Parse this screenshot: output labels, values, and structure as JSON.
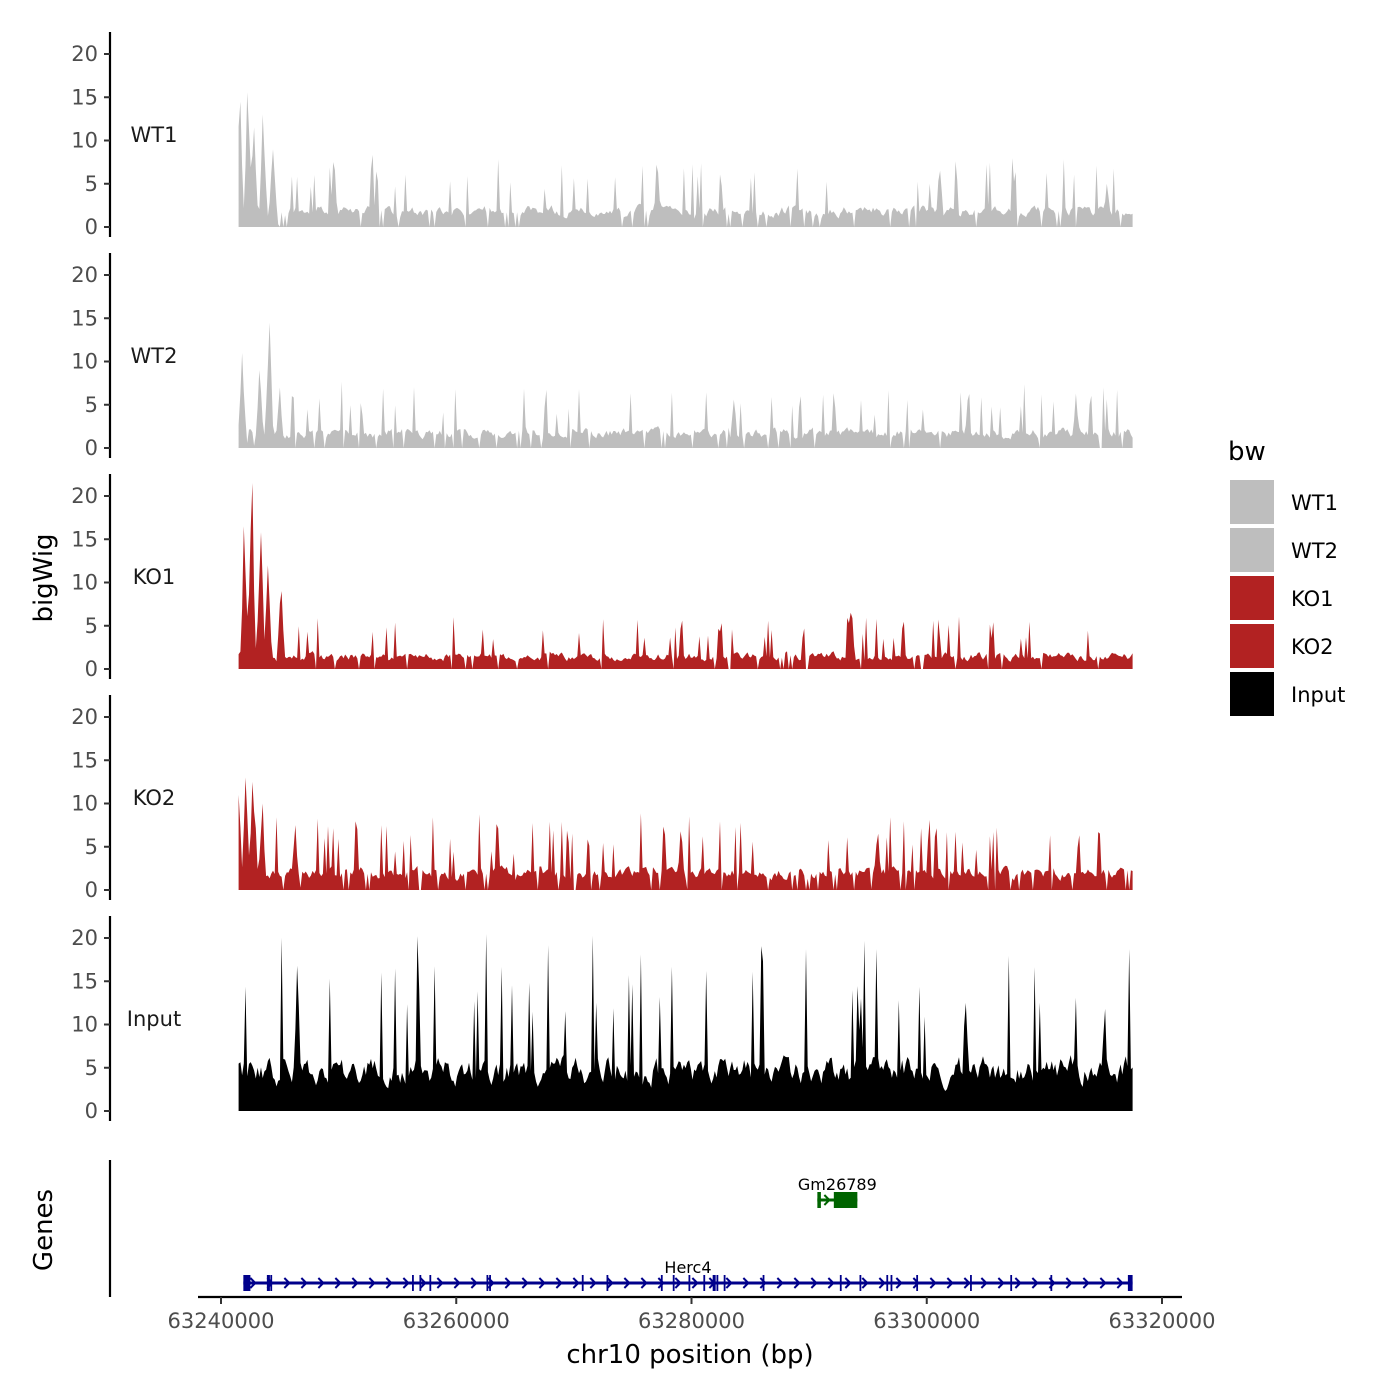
{
  "chart_data": {
    "type": "area",
    "y_axis_title": "bigWig",
    "genes_axis_title": "Genes",
    "x_axis_title": "chr10 position (bp)",
    "x_ticks": [
      63240000,
      63260000,
      63280000,
      63300000,
      63320000
    ],
    "x_tick_labels": [
      "63240000",
      "63260000",
      "63280000",
      "63300000",
      "63320000"
    ],
    "xlim": [
      63240000,
      63320000
    ],
    "data_xrange": [
      63241500,
      63317500
    ],
    "y_ticks": [
      0,
      5,
      10,
      15,
      20
    ],
    "y_tick_labels": [
      "0",
      "5",
      "10",
      "15",
      "20"
    ],
    "ylim": [
      0,
      23
    ],
    "tracks": [
      {
        "name": "WT1",
        "color": "#bebebe",
        "peaks": [
          [
            63242300,
            15.6
          ],
          [
            63241600,
            14.5
          ],
          [
            63243600,
            13
          ],
          [
            63242800,
            11.5
          ],
          [
            63244400,
            9
          ],
          [
            63249600,
            7.5
          ],
          [
            63277100,
            6.3
          ],
          [
            63301100,
            6.5
          ],
          [
            63315300,
            5
          ]
        ],
        "background": 2.2,
        "seed": 11
      },
      {
        "name": "WT2",
        "color": "#bebebe",
        "peaks": [
          [
            63244100,
            14.5
          ],
          [
            63241800,
            11
          ],
          [
            63243300,
            9
          ],
          [
            63245000,
            7
          ],
          [
            63283600,
            5.6
          ],
          [
            63303500,
            5.5
          ],
          [
            63312700,
            6.3
          ]
        ],
        "background": 2.0,
        "seed": 23
      },
      {
        "name": "KO1",
        "color": "#b22222",
        "peaks": [
          [
            63242600,
            21.5
          ],
          [
            63242000,
            16.5
          ],
          [
            63243400,
            15.8
          ],
          [
            63244000,
            12
          ],
          [
            63245100,
            9
          ],
          [
            63293600,
            6.5
          ]
        ],
        "background": 1.7,
        "seed": 37
      },
      {
        "name": "KO2",
        "color": "#b22222",
        "peaks": [
          [
            63242100,
            13
          ],
          [
            63242700,
            12.5
          ],
          [
            63241500,
            11
          ],
          [
            63243500,
            10
          ],
          [
            63246300,
            7.5
          ],
          [
            63279100,
            6.8
          ],
          [
            63295800,
            6.5
          ]
        ],
        "background": 2.3,
        "seed": 41
      },
      {
        "name": "Input",
        "color": "#000000",
        "peaks": [
          [
            63246500,
            16.8
          ],
          [
            63294400,
            13
          ],
          [
            63303300,
            12.5
          ],
          [
            63315100,
            11.8
          ]
        ],
        "background": 5.5,
        "seed": 59
      }
    ],
    "legend": {
      "title": "bw",
      "entries": [
        {
          "label": "WT1",
          "color": "#bebebe"
        },
        {
          "label": "WT2",
          "color": "#bebebe"
        },
        {
          "label": "KO1",
          "color": "#b22222"
        },
        {
          "label": "KO2",
          "color": "#b22222"
        },
        {
          "label": "Input",
          "color": "#000000"
        }
      ]
    },
    "genes": [
      {
        "name": "Herc4",
        "color": "#00008b",
        "strand": "+",
        "row": 2,
        "start": 63241900,
        "end": 63317500,
        "exons": [
          [
            63241900,
            63242500
          ],
          [
            63243900,
            63244100
          ],
          [
            63281800,
            63281900
          ],
          [
            63317100,
            63317500
          ]
        ]
      },
      {
        "name": "Gm26789",
        "color": "#006400",
        "strand": "+",
        "row": 1,
        "start": 63290700,
        "end": 63294100,
        "exons": [
          [
            63290700,
            63291000
          ],
          [
            63292100,
            63294100
          ]
        ]
      }
    ]
  }
}
